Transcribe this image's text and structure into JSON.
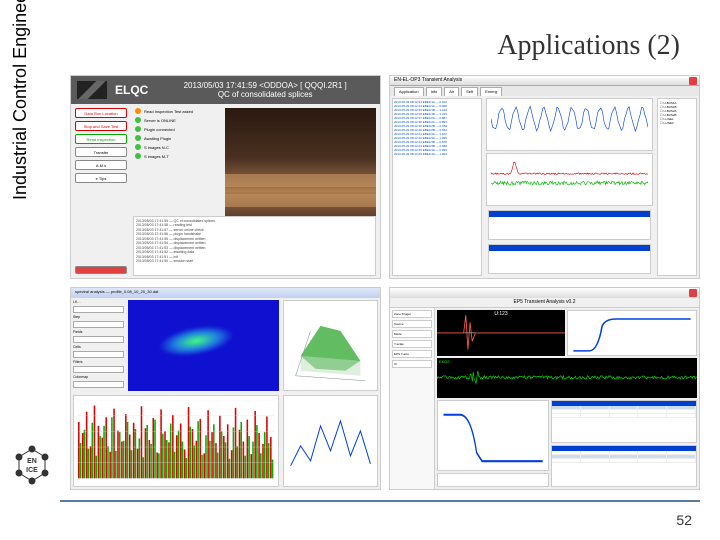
{
  "slide": {
    "vertical_label": "Industrial Control Engineering",
    "title": "Applications (2)",
    "page_number": "52",
    "logo_text": "EN ICE",
    "rule_color": "#5b7a9a"
  },
  "panel1": {
    "app_name": "ELQC",
    "timestamp": "2013/05/03 17:41:59 <ODDOA> [ QQQI.2R1 ]",
    "subtitle": "QC of consolidated splices",
    "buttons": [
      "Data Run Location",
      "Stop and Save Test",
      "Read Inspection",
      "Transfer",
      "A.M.s",
      "e Tips"
    ],
    "status": [
      {
        "color": "#ff8c00",
        "label": "Read Inspection Test asked"
      },
      {
        "color": "#40c040",
        "label": "Server is ONLINE"
      },
      {
        "color": "#40c040",
        "label": "Plugin connected"
      },
      {
        "color": "#40c040",
        "label": "Awaiting Plugin"
      },
      {
        "color": "#40c040",
        "label": "S images N-C"
      },
      {
        "color": "#40c040",
        "label": "S images M-T"
      }
    ],
    "log_lines": [
      "2013/05/03 17:41:59 — QC of consolidated splices",
      "2013/05/03 17:41:58 — reading test",
      "2013/05/03 17:41:57 — server online check",
      "2013/05/03 17:41:56 — plugin handshake",
      "2013/05/03 17:41:55 — displacement written",
      "2013/05/03 17:41:54 — displacement written",
      "2013/05/03 17:41:53 — displacement written",
      "2013/05/03 17:41:52 — awaiting data",
      "2013/05/03 17:41:51 — init",
      "2013/05/03 17:41:50 — session start"
    ],
    "photo_colors": {
      "dark": "#2a1810",
      "mid": "#8a6040",
      "light": "#b08050"
    }
  },
  "panel2": {
    "title": "EN-EL-OP3 Transient Analysis",
    "tabs": [
      "Application",
      "Info",
      "Alr",
      "Sett",
      "Emerg"
    ],
    "list_rows": [
      "2013-05-03 08:12:33  EBE1/1A  —  0.912",
      "2013-05-03 08:12:34  EBE1/1A  —  0.908",
      "2013-05-03 08:12:35  EBE1/1B  —  1.024",
      "2013-05-03 08:12:36  EBE1/1B  —  1.031",
      "2013-05-03 08:12:37  EBE1/2A  —  0.887",
      "2013-05-03 08:12:38  EBE1/2A  —  0.893",
      "2013-05-03 08:12:39  EBE1/2B  —  0.954",
      "2013-05-03 08:12:40  EBE1/2B  —  0.961",
      "2013-05-03 08:12:41  EBE1/3A  —  1.102",
      "2013-05-03 08:12:42  EBE1/3A  —  1.095",
      "2013-05-03 08:12:43  EBE1/3B  —  0.876",
      "2013-05-03 08:12:44  EBE1/3B  —  0.882",
      "2013-05-03 08:12:45  EBE1/4A  —  0.999",
      "2013-05-03 08:12:46  EBE1/4A  —  1.004"
    ],
    "legend": [
      "U-BUS1A",
      "U-BUS1B",
      "U-BUS2A",
      "U-BUS2B",
      "I-LINE1",
      "I-LINE2"
    ],
    "chart_top": {
      "type": "line",
      "color": "#0040e0",
      "ylim": [
        0,
        1.2
      ],
      "xlim": [
        0,
        200
      ],
      "background_color": "#ffffff",
      "grid_color": "#e0e0e0",
      "line_width": 1
    },
    "chart_mid": {
      "type": "line",
      "colors": [
        "#e00000",
        "#00b000"
      ],
      "ylim": [
        -1,
        1
      ],
      "xlim": [
        0,
        200
      ],
      "spike_x": 30,
      "baseline": 0,
      "noise_amp": 0.15,
      "line_width": 1
    },
    "table_header_color": "#0040d0"
  },
  "panel3": {
    "title": "spectral analysis — profile_0.08_10_20_30.dat",
    "controls": [
      "LK…",
      "Step",
      "Fields",
      "Cells",
      "Filters",
      "Colormap"
    ],
    "spectrogram": {
      "type": "heatmap",
      "background_color": "#1010d0",
      "plume_colors": [
        "#40ff80",
        "#2080e0"
      ],
      "xlim": [
        0,
        300
      ],
      "ylim": [
        0,
        100
      ]
    },
    "surface3d": {
      "type": "surface",
      "peak_color": "#20a020",
      "base_color": "#c0e0c0",
      "zlim": [
        0,
        1
      ],
      "grid_color": "#cccccc"
    },
    "bars": {
      "type": "bar",
      "colors": [
        "#e00000",
        "#00b000"
      ],
      "xlim": [
        0,
        50
      ],
      "ylim": [
        0,
        100
      ],
      "values_red": [
        72,
        58,
        85,
        41,
        93,
        67,
        52,
        78,
        34,
        89,
        61,
        47,
        82,
        56,
        71,
        38,
        92,
        64,
        49,
        77,
        33,
        88,
        60,
        46,
        81,
        55,
        70,
        37,
        91,
        63,
        48,
        76,
        32,
        87,
        59,
        45,
        80,
        54,
        69,
        36,
        90,
        62,
        47,
        75,
        31,
        86,
        58,
        44,
        79,
        53
      ],
      "values_green": [
        45,
        62,
        38,
        71,
        29,
        54,
        67,
        41,
        78,
        35,
        59,
        48,
        72,
        36,
        63,
        51,
        27,
        68,
        44,
        75,
        32,
        57,
        49,
        70,
        34,
        61,
        47,
        26,
        66,
        42,
        73,
        30,
        55,
        48,
        69,
        33,
        60,
        46,
        25,
        65,
        41,
        72,
        29,
        54,
        47,
        68,
        32,
        59,
        45,
        24
      ],
      "bar_width": 0.9,
      "grid_color": "#dddddd"
    }
  },
  "panel4": {
    "title": "EP5 Transient Analysis  v0.2",
    "overlay": "U:123",
    "side_groups": [
      "Zone Trigger",
      "Source",
      "Mode",
      "Y-scale",
      "EPS Y-axis",
      "IC"
    ],
    "scope1": {
      "type": "line",
      "background_color": "#000000",
      "color": "#ffffff",
      "spike_color": "#ff4040",
      "xlim": [
        0,
        100
      ],
      "ylim": [
        -1,
        1
      ],
      "line_width": 1
    },
    "curve": {
      "type": "line",
      "color": "#0040e0",
      "background_color": "#ffffff",
      "xlim": [
        0,
        100
      ],
      "ylim": [
        0,
        1
      ],
      "shape": "step-rise",
      "line_width": 1.5
    },
    "green_scope": {
      "type": "line",
      "background_color": "#000000",
      "color": "#00ff00",
      "xlim": [
        0,
        400
      ],
      "ylim": [
        -1,
        1
      ],
      "line_width": 0.8,
      "label": "EKD2"
    },
    "minichart": {
      "type": "line",
      "color": "#0040e0",
      "background_color": "#ffffff",
      "xlim": [
        0,
        100
      ],
      "ylim": [
        0,
        1
      ],
      "shape": "fall",
      "line_width": 1.2
    },
    "tables": {
      "header_color": "#0040d0",
      "row_count": 5,
      "columns": [
        "Name",
        "T0",
        "V1",
        "V2",
        "dV",
        "Status"
      ]
    }
  }
}
